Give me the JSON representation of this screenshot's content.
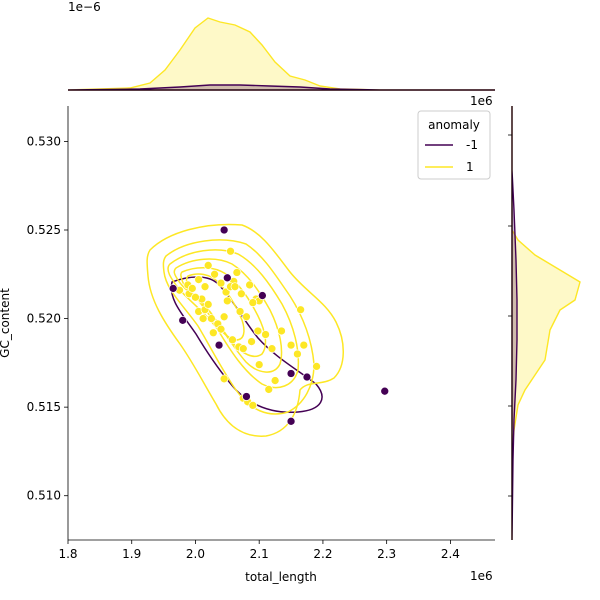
{
  "chart_data": {
    "type": "scatter",
    "subtype": "jointplot with kde contours and marginal kde",
    "xlabel": "total_length",
    "ylabel": "GC_content",
    "x_offset_text": "1e6",
    "y_offset_text": "1e6",
    "marginal_top_offset_text": "1e−6",
    "xlim": [
      1.8,
      2.47
    ],
    "ylim": [
      0.5075,
      0.532
    ],
    "xticks": [
      {
        "value": 1.8,
        "label": "1.8"
      },
      {
        "value": 1.9,
        "label": "1.9"
      },
      {
        "value": 2.0,
        "label": "2.0"
      },
      {
        "value": 2.1,
        "label": "2.1"
      },
      {
        "value": 2.2,
        "label": "2.2"
      },
      {
        "value": 2.3,
        "label": "2.3"
      },
      {
        "value": 2.4,
        "label": "2.4"
      }
    ],
    "yticks": [
      {
        "value": 0.51,
        "label": "0.510"
      },
      {
        "value": 0.515,
        "label": "0.515"
      },
      {
        "value": 0.52,
        "label": "0.520"
      },
      {
        "value": 0.525,
        "label": "0.525"
      },
      {
        "value": 0.53,
        "label": "0.530"
      }
    ],
    "legend": {
      "title": "anomaly",
      "placement": "top-right",
      "entries": [
        {
          "label": "-1",
          "color": "#440154"
        },
        {
          "label": "1",
          "color": "#fde725"
        }
      ]
    },
    "colors": {
      "anomaly_-1": "#440154",
      "anomaly_1": "#fde725"
    },
    "series": [
      {
        "name": "-1",
        "color": "#440154",
        "x": [
          2.045,
          1.965,
          1.98,
          2.05,
          2.037,
          2.105,
          2.15,
          2.175,
          2.08,
          2.15,
          2.297
        ],
        "y": [
          0.525,
          0.5217,
          0.5199,
          0.5223,
          0.5185,
          0.5213,
          0.5169,
          0.5167,
          0.5156,
          0.5142,
          0.5159
        ]
      },
      {
        "name": "1",
        "color": "#fde725",
        "x": [
          2.055,
          1.975,
          1.988,
          2.005,
          1.99,
          2.01,
          2.02,
          2.03,
          2.015,
          2.04,
          2.048,
          2.06,
          2.065,
          2.072,
          2.085,
          2.095,
          2.1,
          2.05,
          2.055,
          2.062,
          2.07,
          2.08,
          2.09,
          2.005,
          2.015,
          2.025,
          2.035,
          2.045,
          2.0,
          1.995,
          2.02,
          2.028,
          2.012,
          2.04,
          2.058,
          2.068,
          2.075,
          2.088,
          2.098,
          2.11,
          2.12,
          2.135,
          2.15,
          2.16,
          2.17,
          2.19,
          2.165,
          2.1,
          2.115,
          2.125,
          2.045,
          2.075,
          2.082,
          2.09
        ],
        "y": [
          0.5238,
          0.5216,
          0.5219,
          0.5222,
          0.5214,
          0.5211,
          0.523,
          0.5225,
          0.5218,
          0.522,
          0.5215,
          0.5221,
          0.5226,
          0.5214,
          0.5219,
          0.5211,
          0.521,
          0.521,
          0.5218,
          0.5218,
          0.5204,
          0.5201,
          0.5209,
          0.5204,
          0.5205,
          0.52,
          0.5197,
          0.5201,
          0.5212,
          0.5217,
          0.5208,
          0.5192,
          0.52,
          0.5194,
          0.5188,
          0.5184,
          0.5183,
          0.5187,
          0.5193,
          0.5191,
          0.5183,
          0.5193,
          0.5185,
          0.518,
          0.5185,
          0.5173,
          0.5205,
          0.5174,
          0.516,
          0.5165,
          0.5166,
          0.5155,
          0.5153,
          0.5151
        ]
      }
    ]
  }
}
